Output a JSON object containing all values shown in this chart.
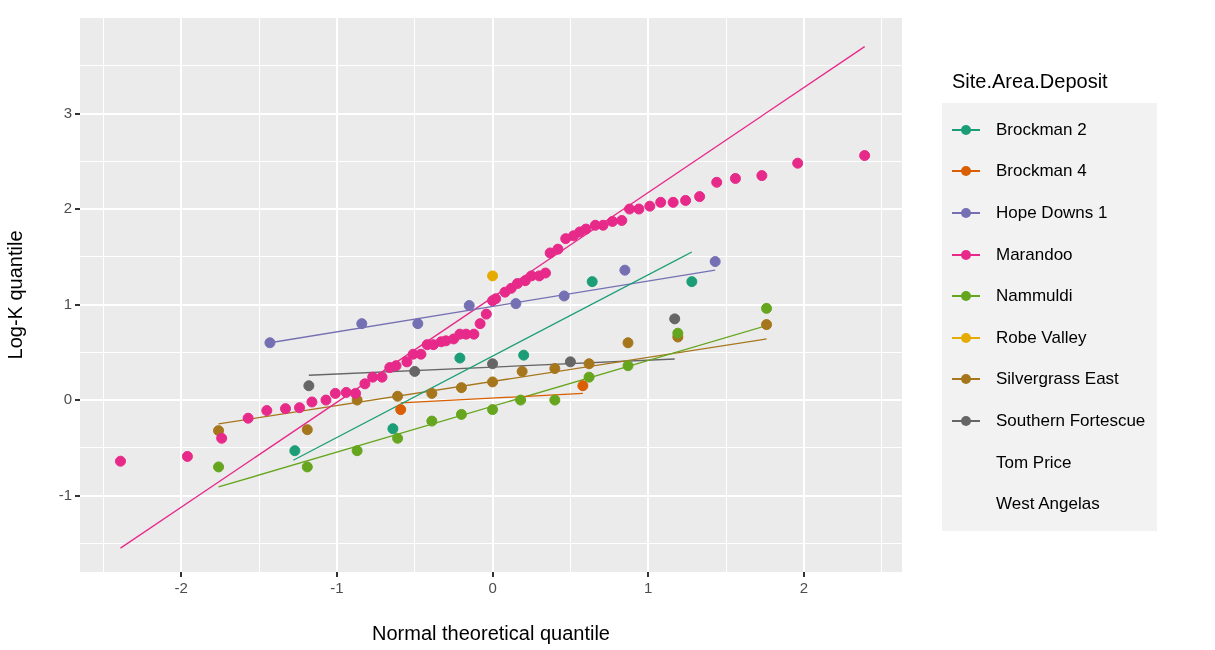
{
  "chart_data": {
    "type": "scatter",
    "xlabel": "Normal theoretical quantile",
    "ylabel": "Log-K quantile",
    "legend_title": "Site.Area.Deposit",
    "legend": "right",
    "grid": true,
    "marker": "circle",
    "xlim": [
      -2.65,
      2.63
    ],
    "ylim": [
      -1.8,
      4.0
    ],
    "xticks": [
      {
        "value": -2.5,
        "label": null
      },
      -2,
      {
        "value": -1.5,
        "label": null
      },
      -1,
      {
        "value": -0.5,
        "label": null
      },
      0,
      {
        "value": 0.5,
        "label": null
      },
      1,
      {
        "value": 1.5,
        "label": null
      },
      2,
      {
        "value": 2.5,
        "label": null
      }
    ],
    "yticks": [
      {
        "value": -1.5,
        "label": null
      },
      -1,
      {
        "value": -0.5,
        "label": null
      },
      0,
      {
        "value": 0.5,
        "label": null
      },
      1,
      {
        "value": 1.5,
        "label": null
      },
      2,
      {
        "value": 2.5,
        "label": null
      },
      3,
      {
        "value": 3.5,
        "label": null
      }
    ],
    "series": [
      {
        "name": "Brockman 2",
        "color": "#1b9e77",
        "x": [
          -1.27,
          -0.64,
          -0.21,
          0.2,
          0.64,
          1.28
        ],
        "values": [
          -0.53,
          -0.3,
          0.44,
          0.47,
          1.24,
          1.24
        ]
      },
      {
        "name": "Brockman 4",
        "color": "#d95f02",
        "x": [
          -0.59,
          0.58
        ],
        "values": [
          -0.1,
          0.15
        ]
      },
      {
        "name": "Hope Downs 1",
        "color": "#7570b3",
        "x": [
          -1.43,
          -0.84,
          -0.48,
          -0.15,
          0.15,
          0.46,
          0.85,
          1.43
        ],
        "values": [
          0.6,
          0.8,
          0.8,
          0.99,
          1.01,
          1.09,
          1.36,
          1.45
        ]
      },
      {
        "name": "Marandoo",
        "color": "#e7298a",
        "x": [
          -2.39,
          -1.96,
          -1.74,
          -1.57,
          -1.45,
          -1.33,
          -1.24,
          -1.16,
          -1.07,
          -1.01,
          -0.94,
          -0.88,
          -0.82,
          -0.77,
          -0.71,
          -0.66,
          -0.62,
          -0.55,
          -0.51,
          -0.46,
          -0.42,
          -0.38,
          -0.33,
          -0.3,
          -0.25,
          -0.21,
          -0.17,
          -0.12,
          -0.08,
          -0.04,
          0.0,
          0.02,
          0.08,
          0.12,
          0.16,
          0.21,
          0.25,
          0.3,
          0.34,
          0.37,
          0.42,
          0.47,
          0.52,
          0.56,
          0.6,
          0.66,
          0.71,
          0.77,
          0.83,
          0.88,
          0.94,
          1.01,
          1.08,
          1.16,
          1.24,
          1.33,
          1.44,
          1.56,
          1.73,
          1.96,
          2.39
        ],
        "values": [
          -0.64,
          -0.59,
          -0.4,
          -0.19,
          -0.11,
          -0.09,
          -0.08,
          -0.02,
          0.0,
          0.07,
          0.08,
          0.07,
          0.17,
          0.24,
          0.24,
          0.34,
          0.36,
          0.4,
          0.48,
          0.48,
          0.58,
          0.58,
          0.61,
          0.62,
          0.64,
          0.69,
          0.69,
          0.69,
          0.8,
          0.9,
          1.04,
          1.06,
          1.13,
          1.17,
          1.22,
          1.25,
          1.3,
          1.3,
          1.33,
          1.54,
          1.58,
          1.69,
          1.72,
          1.76,
          1.79,
          1.83,
          1.83,
          1.87,
          1.88,
          2.0,
          2.0,
          2.03,
          2.07,
          2.07,
          2.09,
          2.13,
          2.28,
          2.32,
          2.35,
          2.48,
          2.56
        ]
      },
      {
        "name": "Nammuldi",
        "color": "#66a61e",
        "x": [
          -1.76,
          -1.19,
          -0.87,
          -0.61,
          -0.39,
          -0.2,
          0.0,
          0.18,
          0.4,
          0.62,
          0.87,
          1.19,
          1.76
        ],
        "values": [
          -0.7,
          -0.7,
          -0.53,
          -0.4,
          -0.22,
          -0.15,
          -0.1,
          0.0,
          0.0,
          0.24,
          0.36,
          0.7,
          0.96
        ]
      },
      {
        "name": "Robe Valley",
        "color": "#e6ab02",
        "x": [
          0.0
        ],
        "values": [
          1.3
        ]
      },
      {
        "name": "Silvergrass East",
        "color": "#a6761d",
        "x": [
          -1.76,
          -1.19,
          -0.87,
          -0.61,
          -0.39,
          -0.2,
          0.0,
          0.19,
          0.4,
          0.62,
          0.87,
          1.19,
          1.76
        ],
        "values": [
          -0.32,
          -0.31,
          0.0,
          0.04,
          0.07,
          0.13,
          0.19,
          0.3,
          0.33,
          0.38,
          0.6,
          0.66,
          0.79
        ]
      },
      {
        "name": "Southern Fortescue",
        "color": "#666666",
        "x": [
          -1.18,
          -0.5,
          0.0,
          0.5,
          1.17
        ],
        "values": [
          0.15,
          0.3,
          0.38,
          0.4,
          0.85
        ]
      },
      {
        "name": "Tom Price"
      },
      {
        "name": "West Angelas"
      },
      {
        "type": "line",
        "marker": "none",
        "color": "#1b9e77",
        "x": [
          -1.28,
          1.28
        ],
        "values": [
          -0.63,
          1.55
        ]
      },
      {
        "type": "line",
        "marker": "none",
        "color": "#d95f02",
        "x": [
          -0.59,
          0.58
        ],
        "values": [
          -0.03,
          0.07
        ]
      },
      {
        "type": "line",
        "marker": "none",
        "color": "#7570b3",
        "x": [
          -1.43,
          1.43
        ],
        "values": [
          0.6,
          1.36
        ]
      },
      {
        "type": "line",
        "marker": "none",
        "color": "#e7298a",
        "x": [
          -2.39,
          2.39
        ],
        "values": [
          -1.55,
          3.7
        ]
      },
      {
        "type": "line",
        "marker": "none",
        "color": "#66a61e",
        "x": [
          -1.76,
          1.76
        ],
        "values": [
          -0.91,
          0.78
        ]
      },
      {
        "type": "line",
        "marker": "none",
        "color": "#a6761d",
        "x": [
          -1.76,
          1.76
        ],
        "values": [
          -0.25,
          0.64
        ]
      },
      {
        "type": "line",
        "marker": "none",
        "color": "#666666",
        "x": [
          -1.18,
          1.17
        ],
        "values": [
          0.26,
          0.43
        ]
      }
    ]
  }
}
